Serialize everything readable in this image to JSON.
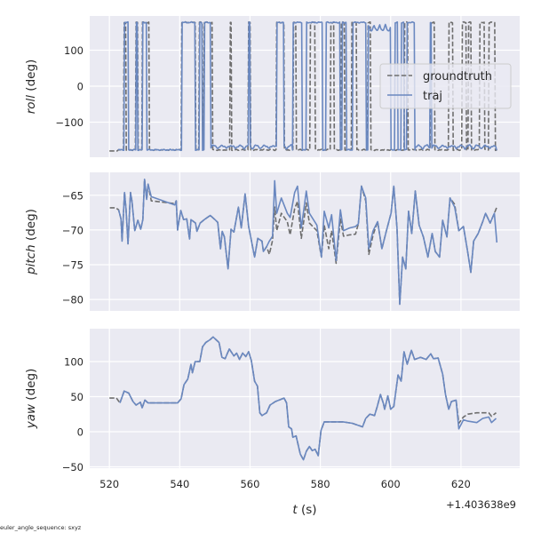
{
  "footer_note": "euler_angle_sequence: sxyz",
  "colors": {
    "background": "#eaeaf2",
    "grid": "#ffffff",
    "groundtruth": "#6e6e6e",
    "traj": "#6a88c0"
  },
  "chart_data": [
    {
      "type": "line",
      "name": "roll",
      "ylabel_var": "roll",
      "ylabel_unit": " (deg)",
      "xlim": [
        514.4,
        636.7
      ],
      "ylim": [
        -197.5,
        195
      ],
      "yticks": [
        -100,
        0,
        100
      ],
      "ytick_labels": [
        "−100",
        "0",
        "100"
      ],
      "grid": true,
      "legend": {
        "placement": "center-right",
        "entries": [
          "groundtruth",
          "traj"
        ]
      },
      "encoding": "value is about +178 inside top_intervals and about -178 otherwise (wrap-around at ±180)",
      "series": [
        {
          "name": "groundtruth",
          "t_range": [
            520,
            630.3
          ],
          "top_intervals": [
            [
              524.2,
              524.8
            ],
            [
              527.5,
              528.2
            ],
            [
              529.4,
              531.4
            ],
            [
              540.6,
              544.6
            ],
            [
              545.6,
              546.5
            ],
            [
              547,
              549.3
            ],
            [
              554.4,
              554.8
            ],
            [
              559.5,
              560.1
            ],
            [
              567.5,
              569.7
            ],
            [
              572.4,
              573.2
            ],
            [
              577.2,
              578.5
            ],
            [
              583,
              584
            ],
            [
              586,
              587
            ],
            [
              589,
              590.3
            ],
            [
              593.5,
              594.3
            ],
            [
              604,
              605
            ],
            [
              611.3,
              612.5
            ],
            [
              616.5,
              617.8
            ],
            [
              620.3,
              621.5
            ],
            [
              622.2,
              623
            ],
            [
              625.4,
              626.7
            ],
            [
              628,
              629.8
            ]
          ]
        },
        {
          "name": "traj",
          "t_range": [
            522.5,
            630.3
          ],
          "top_intervals": [
            [
              524.3,
              525.5
            ],
            [
              527.6,
              528.1
            ],
            [
              529.5,
              530.7
            ],
            [
              540.7,
              544.5
            ],
            [
              545.7,
              546.5
            ],
            [
              547,
              548.8
            ],
            [
              559.6,
              560.1
            ],
            [
              567.7,
              569.7
            ],
            [
              572.3,
              574.8
            ],
            [
              576,
              580.6
            ],
            [
              581.6,
              585.7
            ],
            [
              586.2,
              587.4
            ],
            [
              589.2,
              593
            ],
            [
              593.7,
              600
            ],
            [
              601.3,
              602
            ],
            [
              603,
              603.8
            ],
            [
              604.6,
              606.9
            ],
            [
              611.2,
              611.7
            ]
          ]
        }
      ]
    },
    {
      "type": "line",
      "name": "pitch",
      "ylabel_var": "pitch",
      "ylabel_unit": " (deg)",
      "xlim": [
        514.4,
        636.7
      ],
      "ylim": [
        -81.65,
        -61.7
      ],
      "yticks": [
        -80,
        -75,
        -70,
        -65
      ],
      "ytick_labels": [
        "−80",
        "−75",
        "−70",
        "−65"
      ],
      "grid": true,
      "t": [
        520.1,
        521.8,
        522.6,
        523.3,
        523.6,
        524.3,
        524.7,
        525.3,
        526,
        526.4,
        527.2,
        528.1,
        528.9,
        529.5,
        530,
        530.6,
        531,
        531.9,
        538.6,
        539,
        539.4,
        540.3,
        541.1,
        542,
        542.8,
        543.2,
        544.5,
        544.9,
        545.8,
        547,
        548.7,
        550,
        550.8,
        551.6,
        552.1,
        552.7,
        553.75,
        554.6,
        555.4,
        556.7,
        557.5,
        558.6,
        559.6,
        561.3,
        562.2,
        563.4,
        563.8,
        564.7,
        565.5,
        566.4,
        567,
        567.6,
        568.9,
        570.6,
        571.4,
        572.7,
        573.5,
        574.6,
        576,
        576.9,
        579,
        580.3,
        581.1,
        582.4,
        583.2,
        584.5,
        585.7,
        586.6,
        588.3,
        590,
        590.8,
        591.7,
        592.9,
        593.8,
        595,
        596.3,
        597.5,
        598.8,
        600.1,
        600.9,
        601.8,
        602.6,
        603.4,
        604.3,
        605.1,
        606,
        607,
        608.1,
        609.3,
        610.6,
        611.8,
        612.7,
        613.9,
        614.8,
        616,
        616.9,
        618.2,
        619.4,
        620.7,
        621.9,
        622.8,
        623.6,
        624.9,
        626.2,
        627,
        628.3,
        629.5,
        630.2
      ],
      "series": [
        {
          "name": "groundtruth",
          "values": [
            -66.8,
            -66.8,
            -67.1,
            -68.4,
            -71.6,
            -64.6,
            -66.9,
            -72,
            -64.6,
            -65.8,
            -70.1,
            -68.6,
            -69.9,
            -68.5,
            -62.7,
            -65.6,
            -63.4,
            -65.8,
            -66.2,
            -65.8,
            -70,
            -67.2,
            -68.5,
            -68.4,
            -71.3,
            -68.5,
            -69,
            -70.2,
            -69,
            -68.5,
            -67.9,
            -68.5,
            -68.9,
            -72.7,
            -70.2,
            -71,
            -75.6,
            -69.9,
            -70.3,
            -66.7,
            -69.7,
            -64.8,
            -69.5,
            -73.9,
            -71.2,
            -71.6,
            -73.1,
            -72.4,
            -73.5,
            -71.5,
            -66.7,
            -70.1,
            -67.6,
            -68.8,
            -70.7,
            -66.9,
            -65.9,
            -71.2,
            -66.1,
            -69,
            -70.1,
            -73.9,
            -69.3,
            -72.7,
            -70.1,
            -74.8,
            -68.4,
            -70.9,
            -70.7,
            -70.6,
            -69.1,
            -63.7,
            -65.8,
            -73.5,
            -70.7,
            -68.8,
            -72.7,
            -70.1,
            -67.6,
            -63.7,
            -69.7,
            -80.7,
            -73.9,
            -75.6,
            -67.3,
            -70.5,
            -64.4,
            -69.3,
            -71,
            -73.9,
            -70.5,
            -73.1,
            -73.9,
            -68.6,
            -71,
            -65.4,
            -66.3,
            -70.1,
            -69.5,
            -73.1,
            -76.1,
            -71.6,
            -70.5,
            -68.8,
            -67.6,
            -69,
            -67.6,
            -66.7
          ]
        },
        {
          "name": "traj",
          "values": [
            null,
            null,
            -67.1,
            -68.4,
            -71.6,
            -64.6,
            -66.9,
            -72,
            -64.6,
            -65.8,
            -70.1,
            -68.6,
            -69.9,
            -68.5,
            -62.7,
            -65.6,
            -63.4,
            -65.2,
            -66.4,
            -65.8,
            -70,
            -67.2,
            -68.5,
            -68.4,
            -71.3,
            -68.5,
            -69,
            -70.2,
            -69,
            -68.5,
            -67.9,
            -68.5,
            -68.9,
            -72.7,
            -70.2,
            -71,
            -75.6,
            -69.9,
            -70.3,
            -66.7,
            -69.7,
            -64.8,
            -69.5,
            -73.9,
            -71.2,
            -71.6,
            -73.1,
            -72.4,
            -71.6,
            -70.9,
            -62.9,
            -67.6,
            -65.4,
            -67.6,
            -68.2,
            -64.6,
            -63.7,
            -69.7,
            -64.4,
            -67.6,
            -69.3,
            -73.9,
            -67.3,
            -69.7,
            -67.8,
            -74.4,
            -67.1,
            -70.1,
            -69.7,
            -69.5,
            -69.1,
            -63.7,
            -65.4,
            -72.7,
            -70.1,
            -68.8,
            -72.7,
            -70.1,
            -67.6,
            -63.7,
            -69.7,
            -80.7,
            -73.9,
            -75.6,
            -67.3,
            -70.5,
            -64.4,
            -69.3,
            -71,
            -73.9,
            -70.5,
            -73.1,
            -73.9,
            -68.6,
            -71,
            -65.4,
            -66.7,
            -70.1,
            -69.5,
            -73.1,
            -76.1,
            -71.6,
            -70.5,
            -68.8,
            -67.6,
            -69,
            -67.6,
            -71.8
          ]
        }
      ]
    },
    {
      "type": "line",
      "name": "yaw",
      "ylabel_var": "yaw",
      "ylabel_unit": " (deg)",
      "xlabel_var": "t",
      "xlabel_unit": " (s)",
      "x_offset_label": "+1.403638e9",
      "xlim": [
        514.4,
        636.7
      ],
      "ylim": [
        -51.9,
        146.8
      ],
      "xticks": [
        520,
        540,
        560,
        580,
        600,
        620
      ],
      "xtick_labels": [
        "520",
        "540",
        "560",
        "580",
        "600",
        "620"
      ],
      "yticks": [
        -50,
        0,
        50,
        100
      ],
      "ytick_labels": [
        "−50",
        "0",
        "50",
        "100"
      ],
      "grid": true,
      "t": [
        520,
        522,
        523,
        524.2,
        525.5,
        526.7,
        527.6,
        528.8,
        529.3,
        530.1,
        531,
        539.4,
        540.4,
        541.2,
        542.3,
        543.2,
        543.6,
        544.4,
        545.7,
        546.5,
        547.4,
        548.6,
        549.5,
        551.2,
        552,
        552.9,
        554.1,
        555.4,
        556.2,
        557,
        557.9,
        558.8,
        559.6,
        560.4,
        561.3,
        562.1,
        562.8,
        563.4,
        564.7,
        565.7,
        567.2,
        569.7,
        570.4,
        571,
        571.8,
        572.2,
        573.1,
        574.3,
        575.2,
        576,
        576.9,
        577.7,
        578.5,
        579.4,
        580.2,
        581.1,
        584,
        586.5,
        589.1,
        592,
        592.9,
        594.1,
        595.4,
        596.2,
        597.1,
        597.9,
        598.3,
        599.2,
        600,
        600.9,
        602.1,
        603,
        603.8,
        604.7,
        605.9,
        606.8,
        608.5,
        610.1,
        611.4,
        612.2,
        613.5,
        614.8,
        615.6,
        616.5,
        617.3,
        618.6,
        619.4,
        620.7,
        622,
        624.5,
        626.2,
        627.9,
        628.7,
        630
      ],
      "series": [
        {
          "name": "groundtruth",
          "values": [
            48,
            48,
            41,
            58,
            55,
            43,
            38,
            42,
            34,
            45,
            41,
            41,
            47,
            67,
            75,
            96,
            84,
            100,
            100,
            121,
            127,
            131,
            135,
            127,
            106,
            104,
            118,
            108,
            112,
            103,
            112,
            107,
            114,
            101,
            72,
            65,
            27,
            23,
            27,
            38,
            43,
            48,
            41,
            7,
            4,
            -8,
            -6,
            -32,
            -40,
            -28,
            -21,
            -27,
            -25,
            -34,
            2,
            14,
            14,
            14,
            12,
            7,
            19,
            25,
            23,
            36,
            53,
            41,
            32,
            51,
            32,
            36,
            81,
            72,
            114,
            96,
            116,
            103,
            106,
            103,
            111,
            104,
            105,
            82,
            53,
            32,
            43,
            45,
            12,
            21,
            25,
            27,
            27,
            27,
            22,
            27
          ]
        },
        {
          "name": "traj",
          "values": [
            null,
            null,
            41,
            58,
            55,
            43,
            38,
            42,
            34,
            45,
            41,
            41,
            47,
            67,
            75,
            96,
            84,
            100,
            100,
            121,
            127,
            131,
            135,
            127,
            106,
            104,
            118,
            108,
            112,
            103,
            112,
            107,
            114,
            101,
            72,
            65,
            27,
            23,
            27,
            38,
            43,
            48,
            41,
            7,
            4,
            -8,
            -6,
            -32,
            -40,
            -28,
            -21,
            -27,
            -25,
            -34,
            2,
            14,
            14,
            14,
            12,
            7,
            19,
            25,
            23,
            36,
            53,
            41,
            32,
            51,
            32,
            36,
            81,
            72,
            114,
            96,
            116,
            103,
            106,
            103,
            111,
            104,
            105,
            82,
            53,
            32,
            43,
            45,
            4,
            17,
            15,
            13,
            19,
            21,
            13,
            19
          ]
        }
      ]
    }
  ]
}
